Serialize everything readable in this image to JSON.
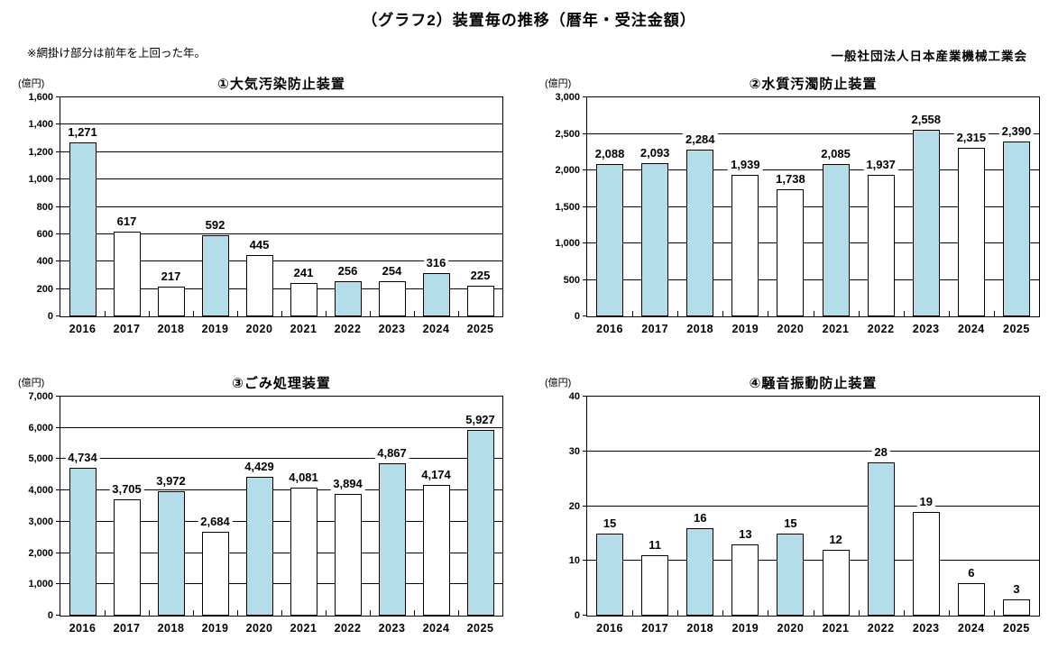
{
  "page": {
    "title": "（グラフ2）装置毎の推移（暦年・受注金額）",
    "note": "※網掛け部分は前年を上回った年。",
    "organization": "一般社団法人日本産業機械工業会"
  },
  "colors": {
    "highlight_fill": "#b3dde8",
    "normal_fill": "#ffffff",
    "bar_border": "#000000"
  },
  "chart_data": [
    {
      "type": "bar",
      "title": "①大気汚染防止装置",
      "unit": "(億円)",
      "categories": [
        "2016",
        "2017",
        "2018",
        "2019",
        "2020",
        "2021",
        "2022",
        "2023",
        "2024",
        "2025"
      ],
      "values": [
        1271,
        617,
        217,
        592,
        445,
        241,
        256,
        254,
        316,
        225
      ],
      "labels": [
        "1,271",
        "617",
        "217",
        "592",
        "445",
        "241",
        "256",
        "254",
        "316",
        "225"
      ],
      "highlighted": [
        true,
        false,
        false,
        true,
        false,
        false,
        true,
        false,
        true,
        false
      ],
      "ylim": [
        0,
        1600
      ],
      "ytick_step": 200,
      "yticks": [
        "0",
        "200",
        "400",
        "600",
        "800",
        "1,000",
        "1,200",
        "1,400",
        "1,600"
      ],
      "grid": true,
      "legend": "none"
    },
    {
      "type": "bar",
      "title": "②水質汚濁防止装置",
      "unit": "(億円)",
      "categories": [
        "2016",
        "2017",
        "2018",
        "2019",
        "2020",
        "2021",
        "2022",
        "2023",
        "2024",
        "2025"
      ],
      "values": [
        2088,
        2093,
        2284,
        1939,
        1738,
        2085,
        1937,
        2558,
        2315,
        2390
      ],
      "labels": [
        "2,088",
        "2,093",
        "2,284",
        "1,939",
        "1,738",
        "2,085",
        "1,937",
        "2,558",
        "2,315",
        "2,390"
      ],
      "highlighted": [
        true,
        true,
        true,
        false,
        false,
        true,
        false,
        true,
        false,
        true
      ],
      "ylim": [
        0,
        3000
      ],
      "ytick_step": 500,
      "yticks": [
        "0",
        "500",
        "1,000",
        "1,500",
        "2,000",
        "2,500",
        "3,000"
      ],
      "grid": true,
      "legend": "none"
    },
    {
      "type": "bar",
      "title": "③ごみ処理装置",
      "unit": "(億円)",
      "categories": [
        "2016",
        "2017",
        "2018",
        "2019",
        "2020",
        "2021",
        "2022",
        "2023",
        "2024",
        "2025"
      ],
      "values": [
        4734,
        3705,
        3972,
        2684,
        4429,
        4081,
        3894,
        4867,
        4174,
        5927
      ],
      "labels": [
        "4,734",
        "3,705",
        "3,972",
        "2,684",
        "4,429",
        "4,081",
        "3,894",
        "4,867",
        "4,174",
        "5,927"
      ],
      "highlighted": [
        true,
        false,
        true,
        false,
        true,
        false,
        false,
        true,
        false,
        true
      ],
      "ylim": [
        0,
        7000
      ],
      "ytick_step": 1000,
      "yticks": [
        "0",
        "1,000",
        "2,000",
        "3,000",
        "4,000",
        "5,000",
        "6,000",
        "7,000"
      ],
      "grid": true,
      "legend": "none"
    },
    {
      "type": "bar",
      "title": "④騒音振動防止装置",
      "unit": "(億円)",
      "categories": [
        "2016",
        "2017",
        "2018",
        "2019",
        "2020",
        "2021",
        "2022",
        "2023",
        "2024",
        "2025"
      ],
      "values": [
        15,
        11,
        16,
        13,
        15,
        12,
        28,
        19,
        6,
        3
      ],
      "labels": [
        "15",
        "11",
        "16",
        "13",
        "15",
        "12",
        "28",
        "19",
        "6",
        "3"
      ],
      "highlighted": [
        true,
        false,
        true,
        false,
        true,
        false,
        true,
        false,
        false,
        false
      ],
      "ylim": [
        0,
        40
      ],
      "ytick_step": 10,
      "yticks": [
        "0",
        "10",
        "20",
        "30",
        "40"
      ],
      "grid": true,
      "legend": "none"
    }
  ]
}
